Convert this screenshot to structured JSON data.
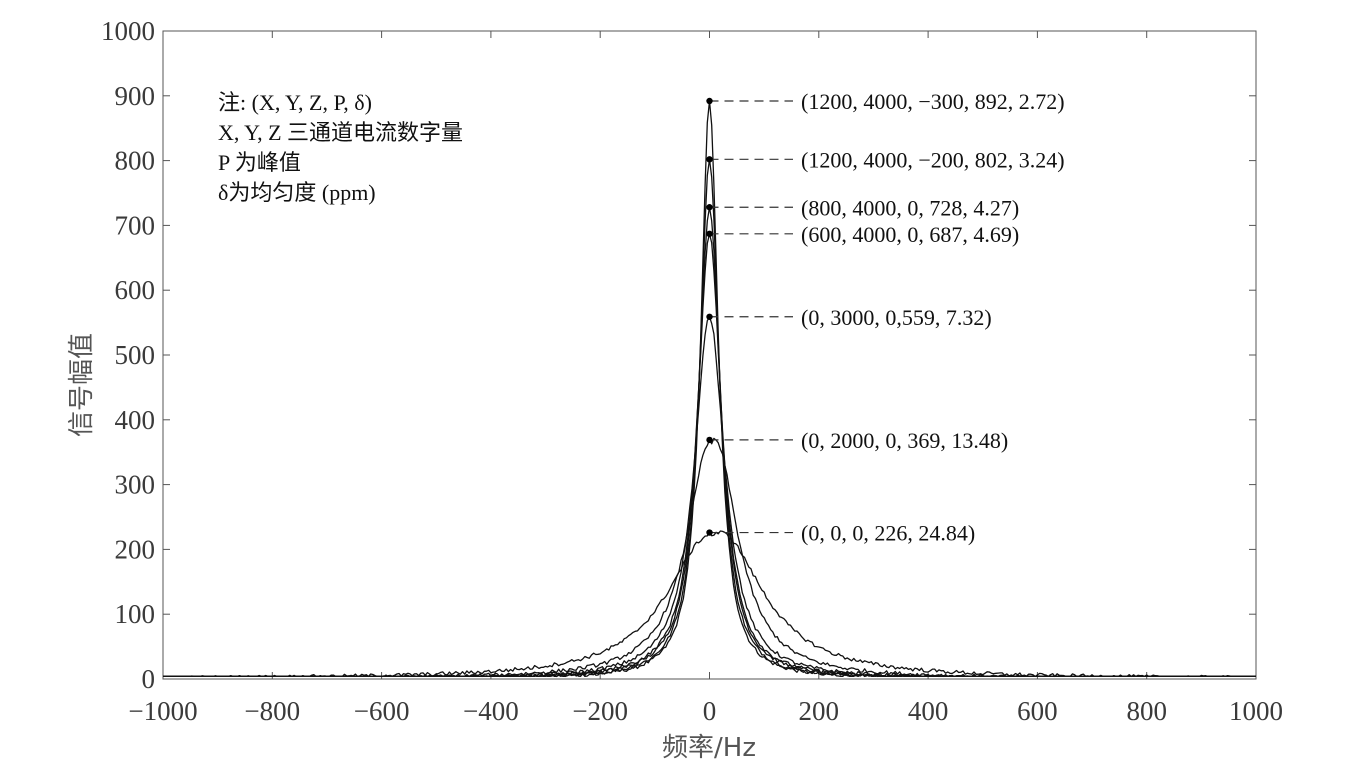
{
  "chart_data": {
    "type": "line",
    "xlabel": "频率/Hz",
    "ylabel": "信号幅值",
    "xlim": [
      -1000,
      1000
    ],
    "ylim": [
      0,
      1000
    ],
    "xticks": [
      "−1000",
      "−800",
      "−600",
      "−400",
      "−200",
      "0",
      "200",
      "400",
      "600",
      "800",
      "1000"
    ],
    "yticks": [
      "0",
      "100",
      "200",
      "300",
      "400",
      "500",
      "600",
      "700",
      "800",
      "900",
      "1000"
    ],
    "grid": false,
    "legend_placement": "none",
    "note_lines": [
      "注: (X, Y, Z, P, δ)",
      "X, Y, Z 三通道电流数字量",
      "P 为峰值",
      "δ为均匀度 (ppm)"
    ],
    "series": [
      {
        "peak_x": 0,
        "peak_y": 892,
        "label": "(1200, 4000, −300, 892, 2.72)"
      },
      {
        "peak_x": 0,
        "peak_y": 802,
        "label": "(1200, 4000, −200, 802, 3.24)"
      },
      {
        "peak_x": 0,
        "peak_y": 728,
        "label": "(800, 4000, 0, 728, 4.27)"
      },
      {
        "peak_x": 0,
        "peak_y": 687,
        "label": "(600, 4000, 0, 687, 4.69)"
      },
      {
        "peak_x": 0,
        "peak_y": 559,
        "label": "(0, 3000, 0,559, 7.32)"
      },
      {
        "peak_x": 0,
        "peak_y": 369,
        "label": "(0, 2000, 0, 369, 13.48)"
      },
      {
        "peak_x": 0,
        "peak_y": 226,
        "label": "(0, 0, 0, 226, 24.84)"
      }
    ],
    "colors": {
      "line": "#111111",
      "axis": "#555555"
    }
  }
}
